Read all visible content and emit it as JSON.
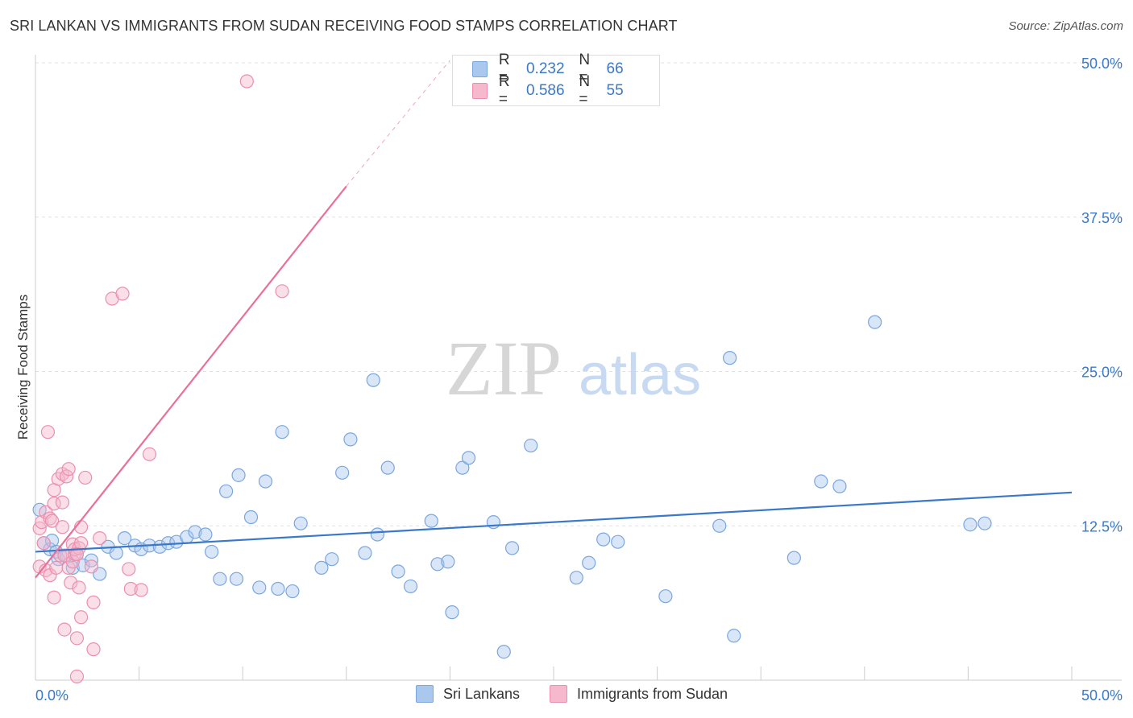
{
  "title": "SRI LANKAN VS IMMIGRANTS FROM SUDAN RECEIVING FOOD STAMPS CORRELATION CHART",
  "source": "Source: ZipAtlas.com",
  "watermark": {
    "zip": "ZIP",
    "atlas": "atlas"
  },
  "legend": {
    "rows": [
      {
        "r_label": "R =",
        "r_value": "0.232",
        "n_label": "N =",
        "n_value": "66"
      },
      {
        "r_label": "R =",
        "r_value": "0.586",
        "n_label": "N =",
        "n_value": "55"
      }
    ]
  },
  "chart_data": {
    "type": "scatter",
    "ylabel": "Receiving Food Stamps",
    "xlim": [
      0,
      50
    ],
    "ylim": [
      0,
      50
    ],
    "x_tick_labels": [
      "0.0%",
      "50.0%"
    ],
    "y_tick_labels": [
      "12.5%",
      "25.0%",
      "37.5%",
      "50.0%"
    ],
    "y_ticks": [
      12.5,
      25,
      37.5,
      50
    ],
    "grid": true,
    "colors": {
      "blue": "#3a78c9",
      "pink": "#e8709a",
      "blue_fill": "#aac8ee",
      "pink_fill": "#f5b8cc"
    },
    "series": [
      {
        "name": "Sri Lankans",
        "color": "#3a78c9",
        "trend": {
          "x0": 0,
          "y0": 10.4,
          "x1": 50,
          "y1": 15.2
        },
        "points": [
          [
            0.2,
            13.8
          ],
          [
            0.4,
            11.1
          ],
          [
            0.7,
            10.6
          ],
          [
            0.8,
            11.3
          ],
          [
            1.0,
            10.4
          ],
          [
            1.1,
            9.8
          ],
          [
            1.5,
            10.1
          ],
          [
            1.8,
            9.1
          ],
          [
            2.0,
            10.2
          ],
          [
            2.3,
            9.3
          ],
          [
            2.7,
            9.7
          ],
          [
            3.1,
            8.6
          ],
          [
            3.5,
            10.8
          ],
          [
            3.9,
            10.3
          ],
          [
            4.3,
            11.5
          ],
          [
            4.8,
            10.9
          ],
          [
            5.1,
            10.6
          ],
          [
            5.5,
            10.9
          ],
          [
            6.0,
            10.8
          ],
          [
            6.4,
            11.1
          ],
          [
            6.8,
            11.2
          ],
          [
            7.3,
            11.6
          ],
          [
            7.7,
            12.0
          ],
          [
            8.2,
            11.8
          ],
          [
            8.5,
            10.4
          ],
          [
            8.9,
            8.2
          ],
          [
            9.2,
            15.3
          ],
          [
            9.7,
            8.2
          ],
          [
            9.8,
            16.6
          ],
          [
            10.4,
            13.2
          ],
          [
            10.8,
            7.5
          ],
          [
            11.1,
            16.1
          ],
          [
            11.7,
            7.4
          ],
          [
            11.9,
            20.1
          ],
          [
            12.4,
            7.2
          ],
          [
            12.8,
            12.7
          ],
          [
            13.8,
            9.1
          ],
          [
            14.3,
            9.8
          ],
          [
            14.8,
            16.8
          ],
          [
            15.2,
            19.5
          ],
          [
            15.9,
            10.3
          ],
          [
            16.3,
            24.3
          ],
          [
            16.5,
            11.8
          ],
          [
            17.0,
            17.2
          ],
          [
            17.5,
            8.8
          ],
          [
            18.1,
            7.6
          ],
          [
            19.1,
            12.9
          ],
          [
            19.4,
            9.4
          ],
          [
            19.9,
            9.6
          ],
          [
            20.1,
            5.5
          ],
          [
            20.6,
            17.2
          ],
          [
            20.9,
            18.0
          ],
          [
            22.1,
            12.8
          ],
          [
            22.6,
            2.3
          ],
          [
            23.0,
            10.7
          ],
          [
            23.9,
            19.0
          ],
          [
            26.1,
            8.3
          ],
          [
            26.7,
            9.5
          ],
          [
            27.4,
            11.4
          ],
          [
            28.1,
            11.2
          ],
          [
            30.4,
            6.8
          ],
          [
            33.0,
            12.5
          ],
          [
            33.7,
            3.6
          ],
          [
            33.5,
            26.1
          ],
          [
            36.6,
            9.9
          ],
          [
            37.9,
            16.1
          ],
          [
            38.8,
            15.7
          ],
          [
            40.5,
            29.0
          ],
          [
            45.1,
            12.6
          ],
          [
            45.8,
            12.7
          ]
        ]
      },
      {
        "name": "Immigrants from Sudan",
        "color": "#e8709a",
        "trend": {
          "x0": 0,
          "y0": 8.3,
          "x1": 15.0,
          "y1": 40.0
        },
        "trend_extension": {
          "x0": 15.0,
          "y0": 40.0,
          "x1": 20.0,
          "y1": 50.2
        },
        "points": [
          [
            0.2,
            12.3
          ],
          [
            0.2,
            9.2
          ],
          [
            0.3,
            12.8
          ],
          [
            0.4,
            11.1
          ],
          [
            0.5,
            13.6
          ],
          [
            0.5,
            8.9
          ],
          [
            0.6,
            20.1
          ],
          [
            0.7,
            13.1
          ],
          [
            0.7,
            8.5
          ],
          [
            0.8,
            12.9
          ],
          [
            0.9,
            14.3
          ],
          [
            0.9,
            6.7
          ],
          [
            0.9,
            15.4
          ],
          [
            1.0,
            9.1
          ],
          [
            1.1,
            16.3
          ],
          [
            1.2,
            10.1
          ],
          [
            1.3,
            16.7
          ],
          [
            1.3,
            14.4
          ],
          [
            1.3,
            12.4
          ],
          [
            1.4,
            10.1
          ],
          [
            1.4,
            4.1
          ],
          [
            1.5,
            16.5
          ],
          [
            1.6,
            17.1
          ],
          [
            1.6,
            9.1
          ],
          [
            1.7,
            7.9
          ],
          [
            1.8,
            11.0
          ],
          [
            1.8,
            9.6
          ],
          [
            1.9,
            10.2
          ],
          [
            1.9,
            10.6
          ],
          [
            2.0,
            0.3
          ],
          [
            2.1,
            10.7
          ],
          [
            2.2,
            11.1
          ],
          [
            2.0,
            10.2
          ],
          [
            2.0,
            3.4
          ],
          [
            2.1,
            7.5
          ],
          [
            2.2,
            5.1
          ],
          [
            2.2,
            12.4
          ],
          [
            2.4,
            16.4
          ],
          [
            2.7,
            9.2
          ],
          [
            2.8,
            2.5
          ],
          [
            2.8,
            6.3
          ],
          [
            3.1,
            11.5
          ],
          [
            3.7,
            30.9
          ],
          [
            4.2,
            31.3
          ],
          [
            4.5,
            9.0
          ],
          [
            4.6,
            7.4
          ],
          [
            5.1,
            7.3
          ],
          [
            5.5,
            18.3
          ],
          [
            10.2,
            48.5
          ],
          [
            11.9,
            31.5
          ]
        ]
      }
    ]
  },
  "bottom_legend": {
    "blue_label": "Sri Lankans",
    "pink_label": "Immigrants from Sudan"
  }
}
